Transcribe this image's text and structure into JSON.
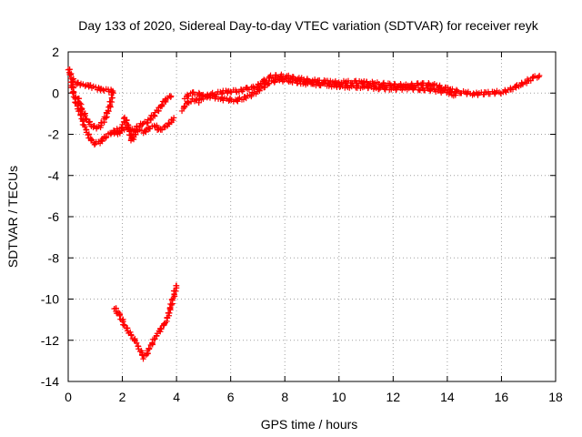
{
  "chart_data": {
    "type": "scatter",
    "title": "Day 133 of 2020, Sidereal Day-to-day VTEC variation (SDTVAR) for receiver reyk",
    "xlabel": "GPS time / hours",
    "ylabel": "SDTVAR / TECUs",
    "xlim": [
      0,
      18
    ],
    "ylim": [
      -14,
      2
    ],
    "xticks": [
      0,
      2,
      4,
      6,
      8,
      10,
      12,
      14,
      16,
      18
    ],
    "yticks": [
      -14,
      -12,
      -10,
      -8,
      -6,
      -4,
      -2,
      0,
      2
    ],
    "grid": true,
    "marker": "plus",
    "color": "#ff0000",
    "series": [
      {
        "name": "SDTVAR",
        "segments": [
          [
            [
              0.0,
              1.2
            ],
            [
              0.1,
              0.9
            ],
            [
              0.2,
              0.5
            ],
            [
              0.3,
              0.5
            ],
            [
              0.5,
              0.4
            ],
            [
              0.7,
              0.4
            ],
            [
              0.9,
              0.3
            ],
            [
              1.1,
              0.2
            ],
            [
              1.3,
              0.2
            ],
            [
              1.5,
              0.1
            ],
            [
              1.6,
              0.1
            ]
          ],
          [
            [
              0.1,
              0.6
            ],
            [
              0.2,
              0.0
            ],
            [
              0.3,
              -0.5
            ],
            [
              0.45,
              -1.0
            ],
            [
              0.6,
              -1.6
            ],
            [
              0.8,
              -2.2
            ],
            [
              1.0,
              -2.45
            ],
            [
              1.2,
              -2.35
            ],
            [
              1.4,
              -2.1
            ],
            [
              1.6,
              -1.9
            ],
            [
              1.8,
              -1.8
            ],
            [
              2.0,
              -1.75
            ],
            [
              2.2,
              -1.7
            ],
            [
              2.4,
              -1.8
            ],
            [
              2.6,
              -1.6
            ],
            [
              2.8,
              -1.5
            ],
            [
              3.0,
              -1.3
            ],
            [
              3.2,
              -1.0
            ],
            [
              3.4,
              -0.7
            ],
            [
              3.6,
              -0.3
            ],
            [
              3.8,
              -0.15
            ]
          ],
          [
            [
              0.35,
              -0.2
            ],
            [
              0.5,
              -0.8
            ],
            [
              0.7,
              -1.3
            ],
            [
              0.9,
              -1.6
            ],
            [
              1.1,
              -1.7
            ],
            [
              1.3,
              -1.4
            ],
            [
              1.5,
              -0.8
            ],
            [
              1.6,
              -0.3
            ],
            [
              1.65,
              0.1
            ]
          ],
          [
            [
              1.7,
              -1.9
            ],
            [
              1.9,
              -2.0
            ],
            [
              2.1,
              -1.2
            ],
            [
              2.2,
              -1.5
            ],
            [
              2.35,
              -2.3
            ],
            [
              2.45,
              -2.0
            ],
            [
              2.6,
              -1.8
            ],
            [
              2.8,
              -1.9
            ],
            [
              3.0,
              -1.7
            ],
            [
              3.2,
              -1.6
            ],
            [
              3.4,
              -1.8
            ],
            [
              3.6,
              -1.6
            ],
            [
              3.8,
              -1.4
            ],
            [
              3.9,
              -1.2
            ]
          ],
          [
            [
              4.2,
              -0.8
            ],
            [
              4.4,
              -0.5
            ],
            [
              4.6,
              -0.3
            ],
            [
              4.8,
              -0.4
            ],
            [
              5.0,
              -0.2
            ],
            [
              5.2,
              -0.1
            ],
            [
              5.5,
              0.0
            ],
            [
              5.8,
              0.05
            ],
            [
              6.0,
              0.1
            ],
            [
              6.3,
              0.1
            ],
            [
              6.6,
              0.2
            ],
            [
              6.9,
              0.3
            ],
            [
              7.2,
              0.55
            ],
            [
              7.5,
              0.8
            ],
            [
              7.8,
              0.85
            ],
            [
              8.1,
              0.8
            ],
            [
              8.5,
              0.7
            ],
            [
              9.0,
              0.6
            ],
            [
              9.5,
              0.55
            ],
            [
              10.0,
              0.5
            ],
            [
              10.5,
              0.55
            ],
            [
              11.0,
              0.5
            ],
            [
              11.5,
              0.45
            ],
            [
              12.0,
              0.4
            ],
            [
              12.5,
              0.35
            ],
            [
              13.0,
              0.45
            ],
            [
              13.5,
              0.4
            ],
            [
              14.0,
              0.2
            ],
            [
              14.5,
              0.05
            ],
            [
              15.0,
              -0.05
            ],
            [
              15.5,
              0.0
            ],
            [
              16.0,
              0.05
            ],
            [
              16.3,
              0.15
            ],
            [
              16.6,
              0.35
            ],
            [
              16.9,
              0.55
            ],
            [
              17.2,
              0.75
            ],
            [
              17.4,
              0.85
            ]
          ],
          [
            [
              4.3,
              -0.2
            ],
            [
              4.6,
              0.0
            ],
            [
              5.0,
              -0.1
            ],
            [
              5.4,
              -0.2
            ],
            [
              5.8,
              -0.3
            ],
            [
              6.2,
              -0.35
            ],
            [
              6.6,
              -0.2
            ],
            [
              7.0,
              0.1
            ],
            [
              7.4,
              0.5
            ],
            [
              7.8,
              0.65
            ],
            [
              8.2,
              0.6
            ],
            [
              8.6,
              0.5
            ],
            [
              9.0,
              0.45
            ],
            [
              9.5,
              0.4
            ],
            [
              10.0,
              0.35
            ],
            [
              10.5,
              0.3
            ],
            [
              11.0,
              0.3
            ],
            [
              11.5,
              0.25
            ],
            [
              12.0,
              0.2
            ],
            [
              12.5,
              0.25
            ],
            [
              13.0,
              0.2
            ],
            [
              13.5,
              0.15
            ],
            [
              14.0,
              0.05
            ],
            [
              14.3,
              -0.1
            ]
          ],
          [
            [
              1.7,
              -10.4
            ],
            [
              1.9,
              -10.8
            ],
            [
              2.1,
              -11.3
            ],
            [
              2.3,
              -11.7
            ],
            [
              2.5,
              -12.1
            ],
            [
              2.7,
              -12.6
            ],
            [
              2.8,
              -12.85
            ],
            [
              2.9,
              -12.7
            ],
            [
              3.0,
              -12.4
            ],
            [
              3.2,
              -11.9
            ],
            [
              3.4,
              -11.5
            ],
            [
              3.6,
              -11.1
            ],
            [
              3.7,
              -10.8
            ],
            [
              3.8,
              -10.3
            ],
            [
              3.9,
              -9.8
            ],
            [
              4.0,
              -9.35
            ]
          ]
        ]
      }
    ]
  }
}
